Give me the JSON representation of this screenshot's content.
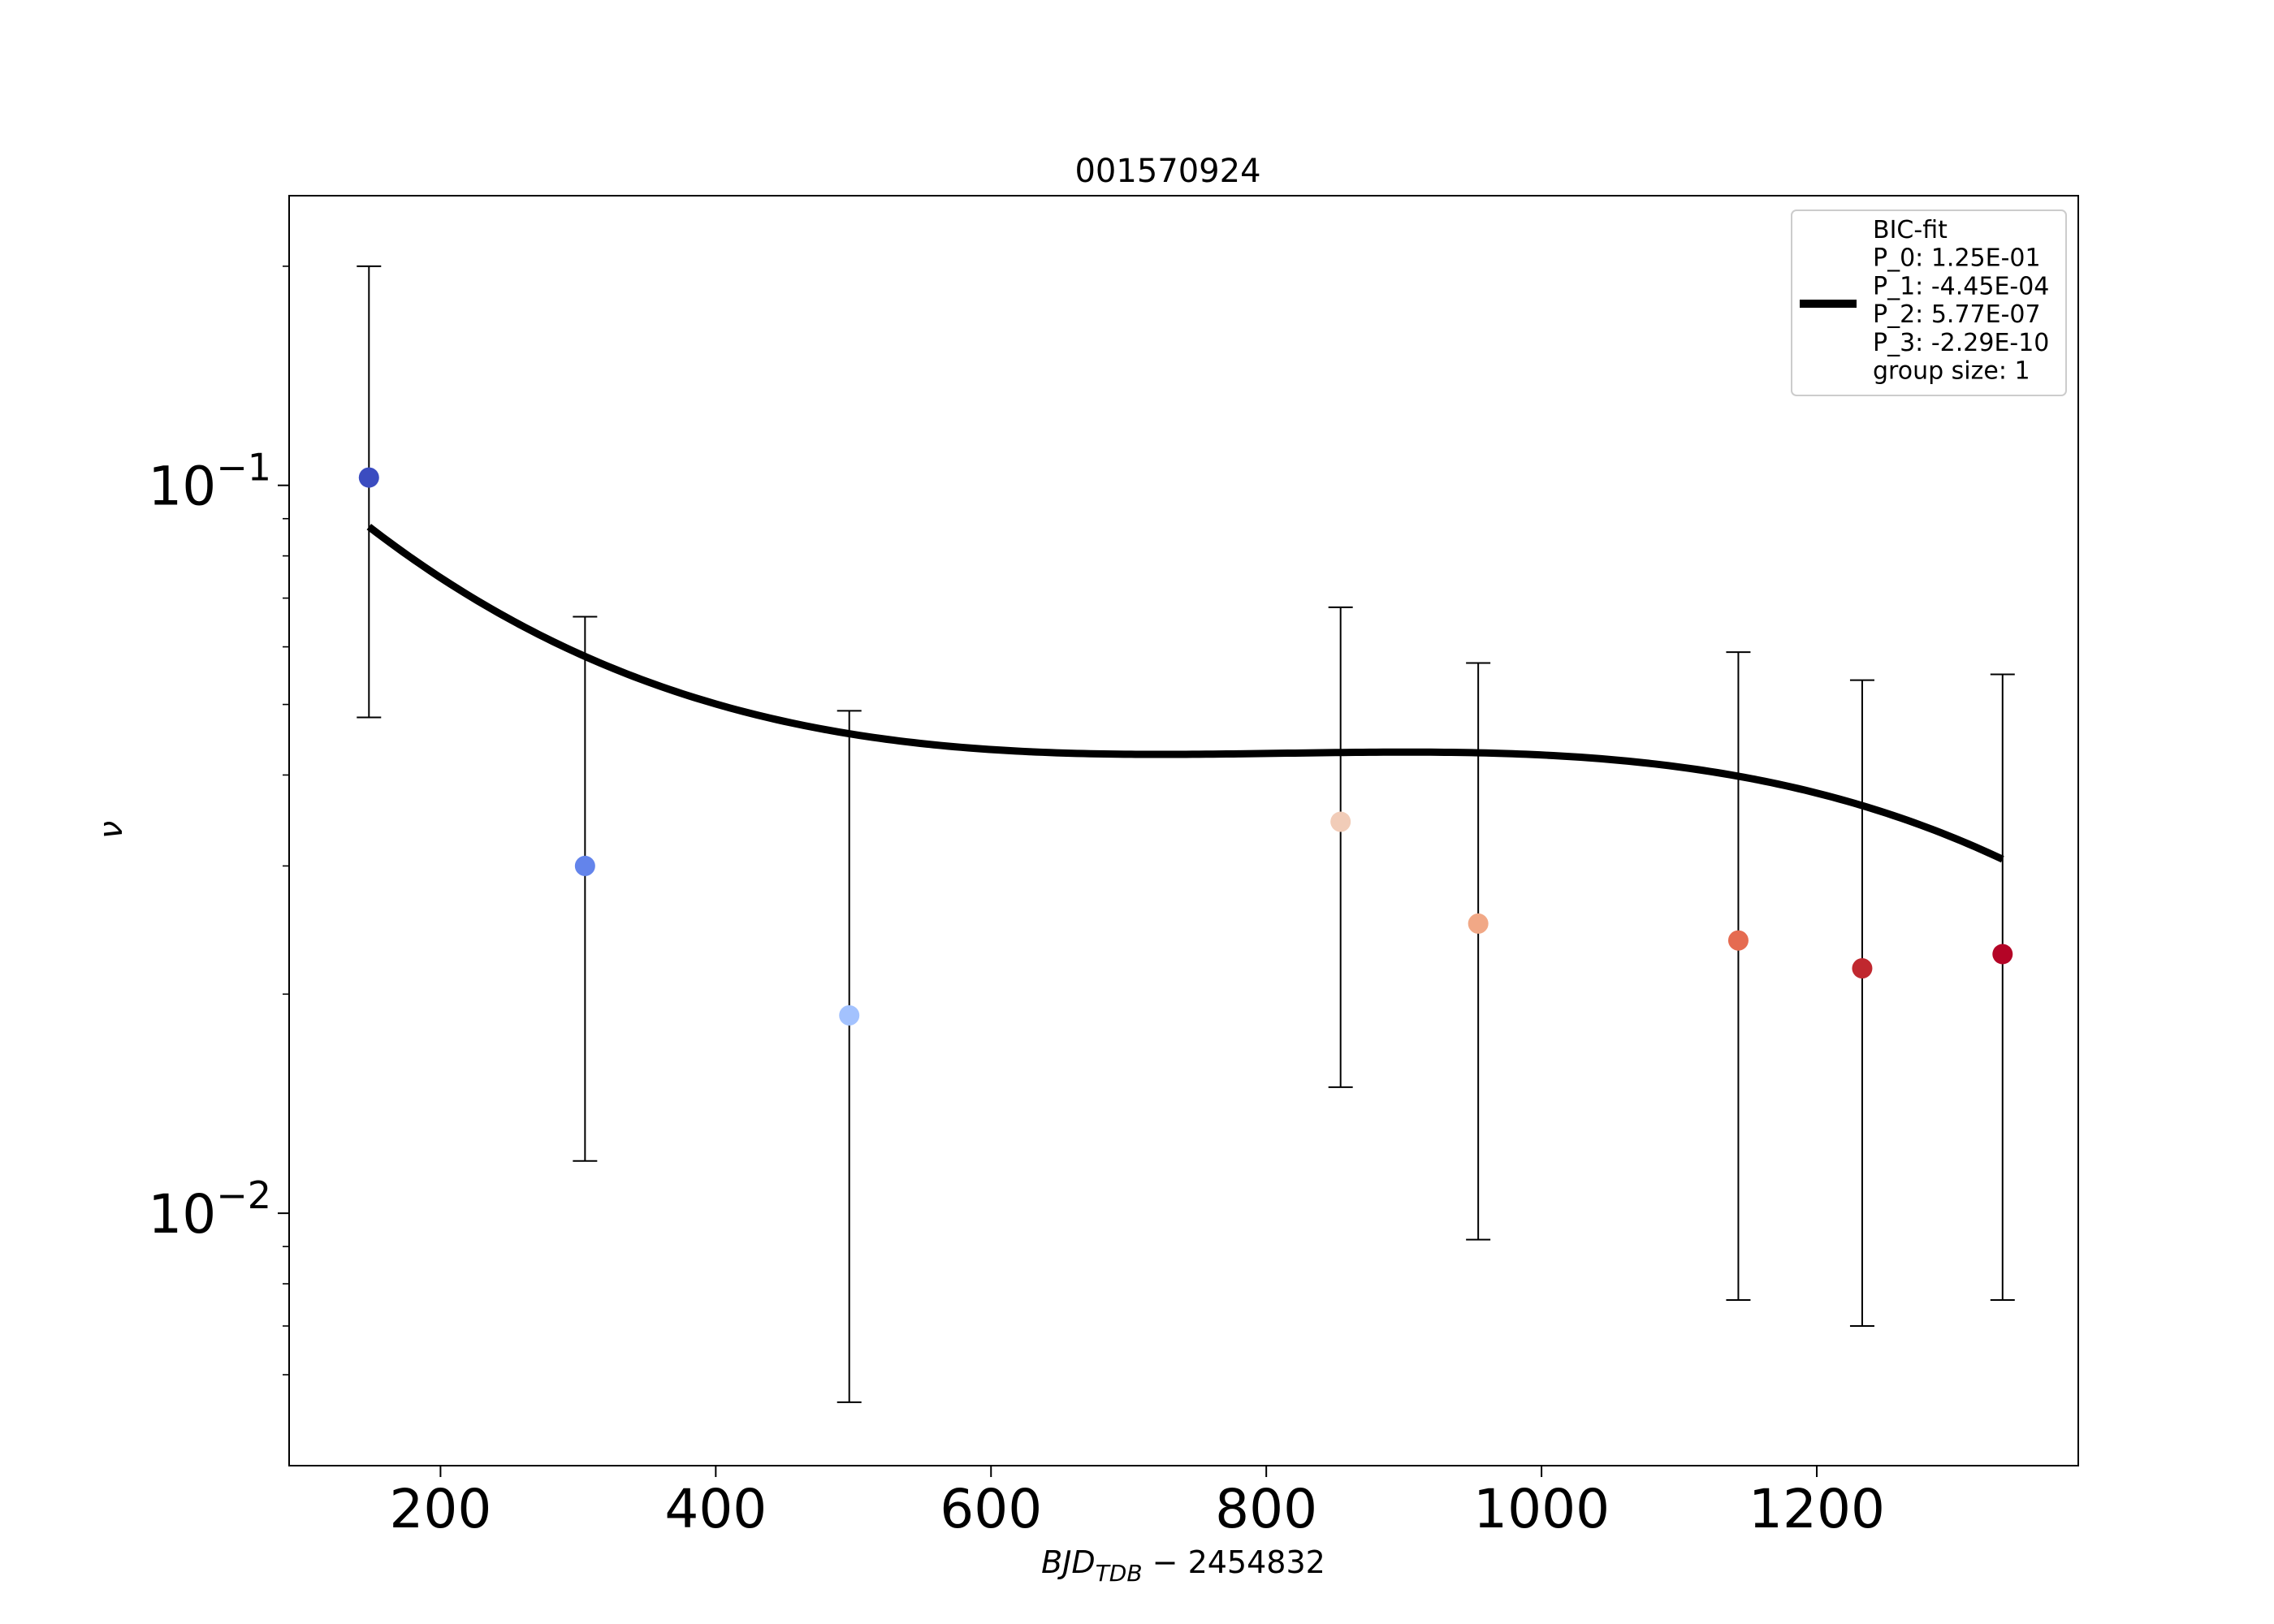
{
  "chart_data": {
    "type": "scatter",
    "title": "001570924",
    "xlabel": "BJD_TDB − 2454832",
    "xlabel_parts": {
      "main": "BJD",
      "sub": "TDB",
      "rest": " − 2454832"
    },
    "ylabel": "ν",
    "x_range": [
      90,
      1390
    ],
    "y_range": [
      0.0045,
      0.25
    ],
    "y_scale": "log",
    "x_ticks": [
      200,
      400,
      600,
      800,
      1000,
      1200
    ],
    "x_tick_labels": [
      "200",
      "400",
      "600",
      "800",
      "1000",
      "1200"
    ],
    "y_major_ticks": [
      0.01,
      0.1
    ],
    "y_major_tick_labels": [
      {
        "base": "10",
        "exp": "−2"
      },
      {
        "base": "10",
        "exp": "−1"
      }
    ],
    "y_minor_ticks": [
      0.006,
      0.007,
      0.008,
      0.009,
      0.02,
      0.03,
      0.04,
      0.05,
      0.06,
      0.07,
      0.08,
      0.09,
      0.2
    ],
    "grid": false,
    "points": [
      {
        "x": 148,
        "y": 0.1025,
        "err_low": 0.048,
        "err_high": 0.2,
        "color": "#3b4cc0"
      },
      {
        "x": 305,
        "y": 0.03,
        "err_low": 0.0118,
        "err_high": 0.066,
        "color": "#6384eb"
      },
      {
        "x": 497,
        "y": 0.0187,
        "err_low": 0.0055,
        "err_high": 0.049,
        "color": "#a3c2fe"
      },
      {
        "x": 854,
        "y": 0.0345,
        "err_low": 0.0149,
        "err_high": 0.068,
        "color": "#f1ccb8"
      },
      {
        "x": 954,
        "y": 0.025,
        "err_low": 0.0092,
        "err_high": 0.057,
        "color": "#f1a886"
      },
      {
        "x": 1143,
        "y": 0.0237,
        "err_low": 0.0076,
        "err_high": 0.059,
        "color": "#e56b51"
      },
      {
        "x": 1233,
        "y": 0.0217,
        "err_low": 0.007,
        "err_high": 0.054,
        "color": "#c0282f"
      },
      {
        "x": 1335,
        "y": 0.0227,
        "err_low": 0.0076,
        "err_high": 0.055,
        "color": "#b40426"
      }
    ],
    "fit": {
      "label": "BIC-fit",
      "color": "#000000",
      "x_range": [
        148,
        1335
      ],
      "model": "polynomial in x for log10(y)",
      "coefficients": [
        -0.7886,
        -0.0021924,
        2.7306e-06,
        -1.12e-09
      ]
    },
    "legend": {
      "position": "top-right",
      "lines": [
        "BIC-fit",
        "P_0: 1.25E-01",
        "P_1: -4.45E-04",
        "P_2: 5.77E-07",
        "P_3: -2.29E-10",
        "group size: 1"
      ]
    }
  }
}
